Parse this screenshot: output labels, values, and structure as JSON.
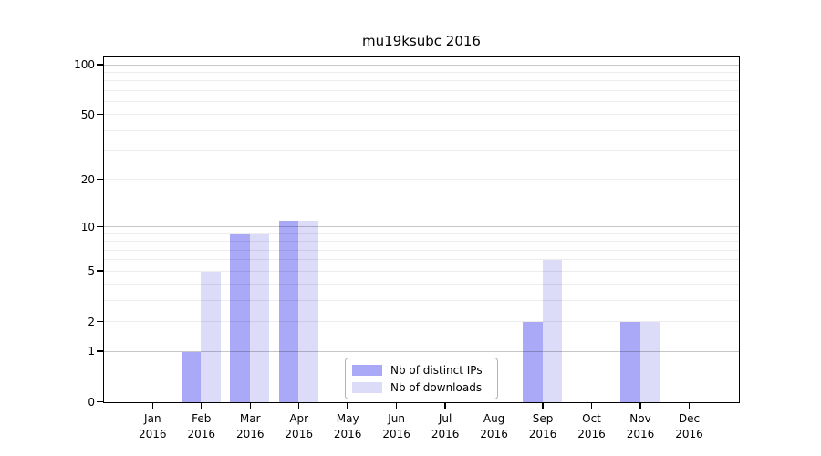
{
  "title": "mu19ksubc 2016",
  "chart_data": {
    "type": "bar",
    "title": "mu19ksubc 2016",
    "categories": [
      "Jan 2016",
      "Feb 2016",
      "Mar 2016",
      "Apr 2016",
      "May 2016",
      "Jun 2016",
      "Jul 2016",
      "Aug 2016",
      "Sep 2016",
      "Oct 2016",
      "Nov 2016",
      "Dec 2016"
    ],
    "series": [
      {
        "name": "Nb of distinct IPs",
        "color": "#a9a9f7",
        "values": [
          0,
          1,
          9,
          11,
          0,
          0,
          0,
          0,
          2,
          0,
          2,
          0
        ]
      },
      {
        "name": "Nb of downloads",
        "color": "#dcdcf8",
        "values": [
          0,
          5,
          9,
          11,
          0,
          0,
          0,
          0,
          6,
          0,
          2,
          0
        ]
      }
    ],
    "yscale": "log1p",
    "ylim": [
      0,
      100
    ],
    "yticks": [
      0,
      1,
      2,
      5,
      10,
      20,
      50,
      100
    ],
    "minor_gridline_values": [
      1,
      2,
      3,
      4,
      5,
      6,
      7,
      8,
      9,
      10,
      20,
      30,
      40,
      50,
      60,
      70,
      80,
      90,
      100
    ],
    "emphasized_gridline_values": [
      1,
      10,
      100
    ],
    "grid": true,
    "legend": {
      "position": "lower-center",
      "entries": [
        {
          "label": "Nb of distinct IPs",
          "color": "#a9a9f7"
        },
        {
          "label": "Nb of downloads",
          "color": "#dcdcf8"
        }
      ]
    }
  },
  "colors": {
    "background": "#ffffff",
    "frame": "#000000",
    "grid_minor": "#ececec",
    "grid_major": "#c6c6c6",
    "bar_distinct_ips": "#a9a9f7",
    "bar_downloads": "#dcdcf8",
    "text": "#000000",
    "legend_border": "#b3b3b3"
  }
}
